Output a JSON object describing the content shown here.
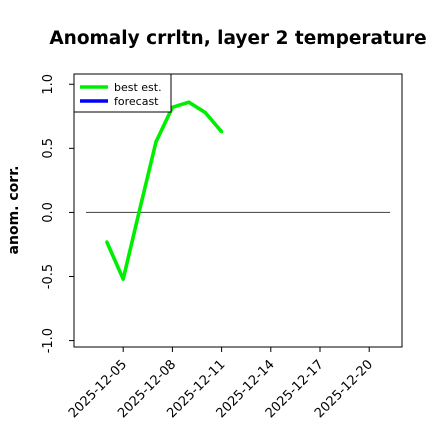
{
  "chart_data": {
    "type": "line",
    "title": "Anomaly crrltn, layer 2 temperature",
    "xlabel": "",
    "ylabel": "anom. corr.",
    "xlim": [
      "2025-12-02",
      "2025-12-22"
    ],
    "ylim": [
      -1.05,
      1.08
    ],
    "x_ticks": [
      "2025-12-05",
      "2025-12-08",
      "2025-12-11",
      "2025-12-14",
      "2025-12-17",
      "2025-12-20"
    ],
    "highlight_tick": "2025-12-11",
    "highlight_color": "#228b22",
    "y_ticks": [
      -1.0,
      -0.5,
      0.0,
      0.5,
      1.0
    ],
    "y_tick_labels": [
      "-1.0",
      "-0.5",
      "0.0",
      "0.5",
      "1.0"
    ],
    "grid": false,
    "zero_line": {
      "y": 0.0,
      "color": "#555555"
    },
    "legend": {
      "placement": "top-left"
    },
    "series": [
      {
        "name": "best est.",
        "color": "#00ee00",
        "x": [
          "2025-12-04",
          "2025-12-05",
          "2025-12-06",
          "2025-12-07",
          "2025-12-08",
          "2025-12-09",
          "2025-12-10",
          "2025-12-11"
        ],
        "values": [
          -0.23,
          -0.52,
          0.02,
          0.55,
          0.82,
          0.86,
          0.78,
          0.63
        ]
      },
      {
        "name": "forecast",
        "color": "#0000ff",
        "x": [],
        "values": []
      }
    ]
  }
}
